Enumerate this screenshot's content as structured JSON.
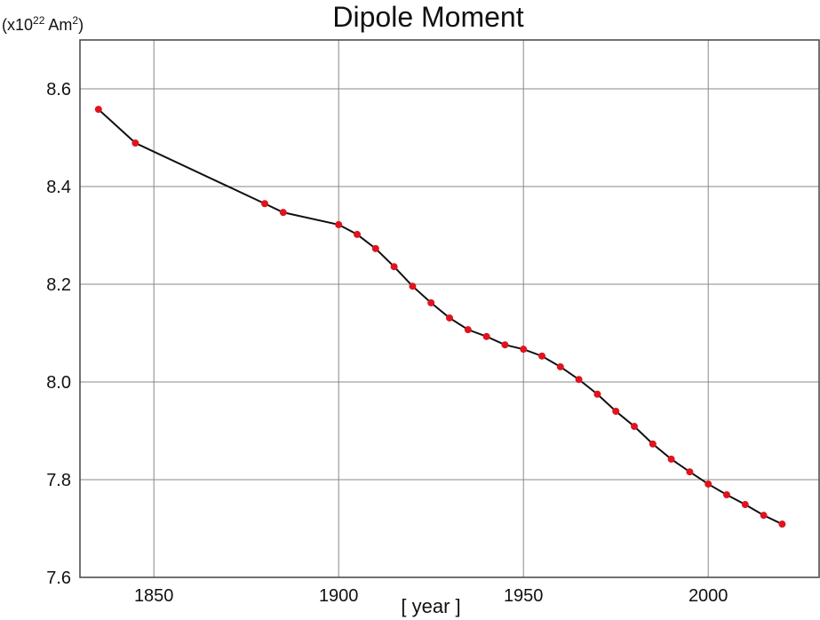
{
  "chart_data": {
    "type": "line",
    "title": "Dipole Moment",
    "ylabel": [
      "(x10",
      "22",
      " Am",
      "2",
      ")"
    ],
    "xlabel": "[ year ]",
    "x": [
      1835,
      1845,
      1880,
      1885,
      1900,
      1905,
      1910,
      1915,
      1920,
      1925,
      1930,
      1935,
      1940,
      1945,
      1950,
      1955,
      1960,
      1965,
      1970,
      1975,
      1980,
      1985,
      1990,
      1995,
      2000,
      2005,
      2010,
      2015,
      2020
    ],
    "series": [
      {
        "color": "#111111",
        "marker_color": "#e0141e",
        "values": [
          8.558,
          8.489,
          8.365,
          8.347,
          8.322,
          8.302,
          8.273,
          8.236,
          8.196,
          8.162,
          8.131,
          8.107,
          8.093,
          8.076,
          8.067,
          8.053,
          8.031,
          8.005,
          7.975,
          7.94,
          7.909,
          7.873,
          7.842,
          7.816,
          7.791,
          7.769,
          7.749,
          7.727,
          7.709
        ]
      }
    ],
    "xlim": [
      1830,
      2030
    ],
    "ylim": [
      7.6,
      8.7
    ],
    "xticks": [
      1850,
      1900,
      1950,
      2000
    ],
    "yticks": [
      7.6,
      7.8,
      {
        "value": 8,
        "label": "8.0"
      },
      8.2,
      8.4,
      8.6
    ],
    "grid": true
  }
}
